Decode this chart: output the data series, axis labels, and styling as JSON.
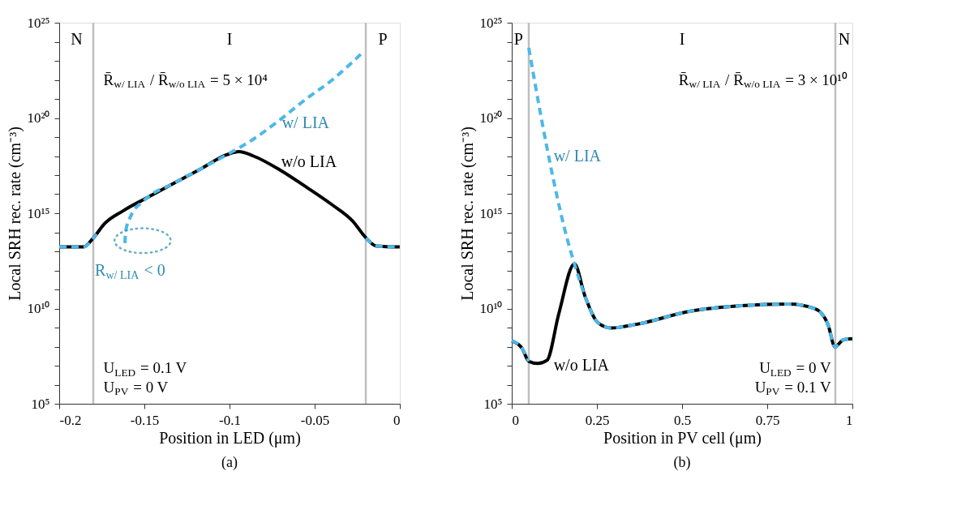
{
  "chart_data": [
    {
      "type": "line",
      "title": "(a)",
      "xlabel": "Position in LED (μm)",
      "ylabel": "Local SRH rec. rate (cm⁻³)",
      "x": [
        -0.2,
        -0.1857,
        -0.18,
        -0.1734,
        -0.1627,
        -0.1475,
        -0.132,
        -0.1166,
        -0.1014,
        -0.0945,
        -0.0859,
        -0.0705,
        -0.0553,
        -0.0398,
        -0.0276,
        -0.0198,
        -0.0138,
        0
      ],
      "series": [
        {
          "name": "w/o LIA",
          "color": "#000000",
          "line_style": "solid",
          "values": [
            17000000000000.0,
            17000000000000.0,
            50000000000000.0,
            280000000000000.0,
            1300000000000000.0,
            7200000000000000.0,
            4e+16,
            2.2e+17,
            1.2e+18,
            1.7e+18,
            1e+18,
            1.9e+17,
            2.5e+16,
            2800000000000000.0,
            380000000000000.0,
            50000000000000.0,
            19000000000000.0,
            17000000000000.0
          ]
        },
        {
          "name": "w/ LIA",
          "color": "#4db8e8",
          "line_style": "dashed",
          "x": [
            -0.2,
            -0.1857,
            -0.18,
            -0.178,
            -0.17,
            -0.1614,
            -0.161,
            -0.158,
            -0.1504,
            -0.132,
            -0.1166,
            -0.1014,
            -0.0859,
            -0.0705,
            -0.0553,
            -0.0398,
            -0.0221,
            -0.021,
            -0.0198,
            -0.0138,
            0
          ],
          "values": [
            17000000000000.0,
            17000000000000.0,
            50000000000000.0,
            80000000000000.0,
            null,
            27000000000000.0,
            110000000000000.0,
            700000000000000.0,
            4500000000000000.0,
            4e+16,
            2.2e+17,
            1.2e+18,
            7.8e+18,
            7.9e+19,
            9.5e+20,
            9.8e+21,
            2.6e+23,
            null,
            50000000000000.0,
            19000000000000.0,
            17000000000000.0
          ]
        }
      ],
      "xlim": [
        -0.2,
        0
      ],
      "xticks": [
        -0.2,
        -0.15,
        -0.1,
        -0.05,
        0
      ],
      "ylim": [
        100000.0,
        1e+25
      ],
      "log": true,
      "yticks": [
        {
          "value": 100000.0,
          "label": "10⁵"
        },
        {
          "value": 1000000.0,
          "label": null
        },
        {
          "value": 10000000.0,
          "label": null
        },
        {
          "value": 100000000.0,
          "label": null
        },
        {
          "value": 1000000000.0,
          "label": null
        },
        {
          "value": 10000000000.0,
          "label": "10¹⁰"
        },
        {
          "value": 100000000000.0,
          "label": null
        },
        {
          "value": 1000000000000.0,
          "label": null
        },
        {
          "value": 10000000000000.0,
          "label": null
        },
        {
          "value": 100000000000000.0,
          "label": null
        },
        {
          "value": 1000000000000000.0,
          "label": "10¹⁵"
        },
        {
          "value": 1e+16,
          "label": null
        },
        {
          "value": 1e+17,
          "label": null
        },
        {
          "value": 1e+18,
          "label": null
        },
        {
          "value": 1e+19,
          "label": null
        },
        {
          "value": 1e+20,
          "label": "10²⁰"
        },
        {
          "value": 1e+21,
          "label": null
        },
        {
          "value": 1e+22,
          "label": null
        },
        {
          "value": 1e+23,
          "label": null
        },
        {
          "value": 1e+24,
          "label": null
        },
        {
          "value": 1e+25,
          "label": "10²⁵"
        }
      ],
      "ref_lines": [
        {
          "axis": "x",
          "value": -0.18,
          "color": "#bfbfbf"
        },
        {
          "axis": "x",
          "value": -0.02,
          "color": "#bfbfbf"
        }
      ],
      "annotations": [
        "R̄$_{w/ LIA}$ / R̄$_{w/o LIA}$ = 5 × 10⁴",
        "U$_{LED}$ = 0.1 V",
        "U$_{PV}$ = 0 V",
        "R$_{w/ LIA}$ < 0",
        "N",
        "I",
        "P"
      ],
      "grid": false,
      "legend": false
    },
    {
      "type": "line",
      "title": "(b)",
      "xlabel": "Position in PV cell (μm)",
      "ylabel": "Local SRH rec. rate (cm⁻³)",
      "x": [
        0,
        0.0307,
        0.0498,
        0.0767,
        0.1035,
        0.138,
        0.184,
        0.2147,
        0.253,
        0.2914,
        0.368,
        0.5215,
        0.675,
        0.813,
        0.8896,
        0.928,
        0.9494,
        0.9586,
        0.974,
        1
      ],
      "series": [
        {
          "name": "w/o LIA",
          "color": "#000000",
          "line_style": "solid",
          "values": [
            200000000.0,
            79000000.0,
            17000000.0,
            13000000.0,
            19000000.0,
            5200000000.0,
            2200000000000.0,
            46000000000.0,
            1800000000.0,
            950000000.0,
            1500000000.0,
            7100000000.0,
            14000000000.0,
            17000000000.0,
            9800000000.0,
            1500000000.0,
            93000000.0,
            130000000.0,
            230000000.0,
            260000000.0
          ]
        },
        {
          "name": "w/ LIA",
          "color": "#4db8e8",
          "line_style": "dashed",
          "x": [
            0,
            0.0307,
            0.0498,
            0.0499,
            0.05,
            0.0843,
            0.1227,
            0.161,
            0.184,
            0.2147,
            0.253,
            0.2914,
            0.368,
            0.5215,
            0.675,
            0.813,
            0.8896,
            0.928,
            0.9494,
            0.9586,
            0.974,
            1
          ],
          "values": [
            200000000.0,
            79000000.0,
            17000000.0,
            null,
            4.8e+23,
            1.7e+20,
            5.4e+16,
            59000000000000.0,
            2200000000000.0,
            46000000000.0,
            1800000000.0,
            950000000.0,
            1500000000.0,
            7100000000.0,
            14000000000.0,
            17000000000.0,
            9800000000.0,
            1500000000.0,
            93000000.0,
            130000000.0,
            230000000.0,
            260000000.0
          ]
        }
      ],
      "xlim": [
        0,
        1
      ],
      "xticks": [
        0,
        0.25,
        0.5,
        0.75,
        1
      ],
      "ylim": [
        100000.0,
        1e+25
      ],
      "log": true,
      "yticks": [
        {
          "value": 100000.0,
          "label": "10⁵"
        },
        {
          "value": 1000000.0,
          "label": null
        },
        {
          "value": 10000000.0,
          "label": null
        },
        {
          "value": 100000000.0,
          "label": null
        },
        {
          "value": 1000000000.0,
          "label": null
        },
        {
          "value": 10000000000.0,
          "label": "10¹⁰"
        },
        {
          "value": 100000000000.0,
          "label": null
        },
        {
          "value": 1000000000000.0,
          "label": null
        },
        {
          "value": 10000000000000.0,
          "label": null
        },
        {
          "value": 100000000000000.0,
          "label": null
        },
        {
          "value": 1000000000000000.0,
          "label": "10¹⁵"
        },
        {
          "value": 1e+16,
          "label": null
        },
        {
          "value": 1e+17,
          "label": null
        },
        {
          "value": 1e+18,
          "label": null
        },
        {
          "value": 1e+19,
          "label": null
        },
        {
          "value": 1e+20,
          "label": "10²⁰"
        },
        {
          "value": 1e+21,
          "label": null
        },
        {
          "value": 1e+22,
          "label": null
        },
        {
          "value": 1e+23,
          "label": null
        },
        {
          "value": 1e+24,
          "label": null
        },
        {
          "value": 1e+25,
          "label": "10²⁵"
        }
      ],
      "ref_lines": [
        {
          "axis": "x",
          "value": 0.05,
          "color": "#bfbfbf"
        },
        {
          "axis": "x",
          "value": 0.95,
          "color": "#bfbfbf"
        }
      ],
      "annotations": [
        "R̄$_{w/ LIA}$ / R̄$_{w/o LIA}$ = 3 × 10¹⁰",
        "U$_{LED}$ = 0 V",
        "U$_{PV}$ = 0.1 V",
        "P",
        "I",
        "N"
      ],
      "grid": false,
      "legend": false
    }
  ]
}
